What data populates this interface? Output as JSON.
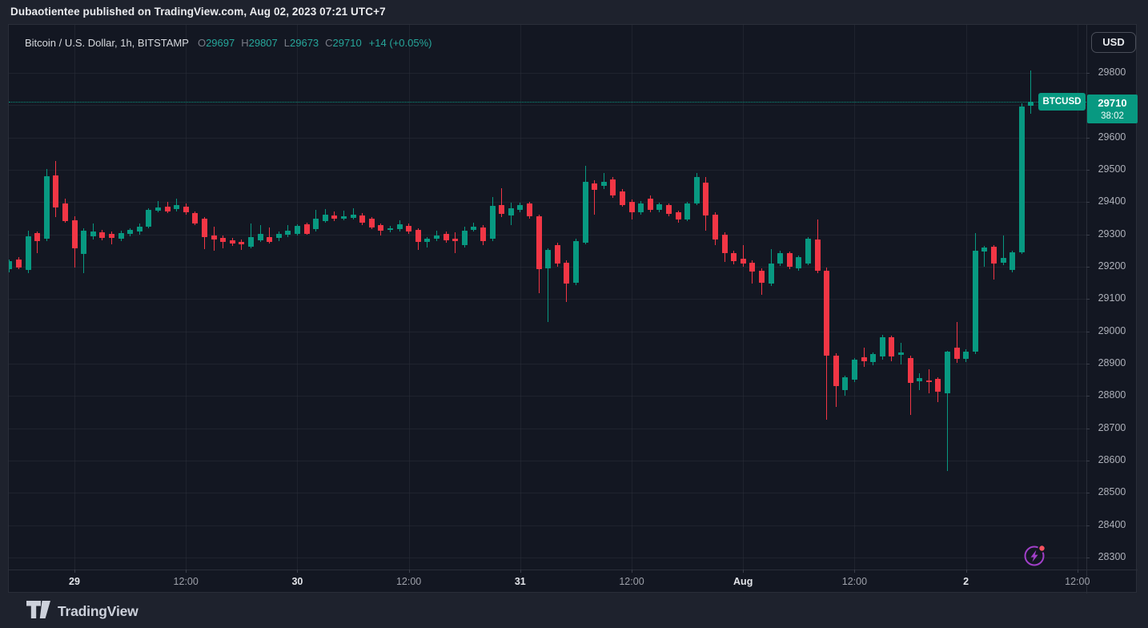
{
  "attribution": {
    "text": "Dubaotientee published on TradingView.com, Aug 02, 2023 07:21 UTC+7"
  },
  "header": {
    "symbol_title": "Bitcoin / U.S. Dollar, 1h, BITSTAMP",
    "ohlc": [
      {
        "label": "O",
        "value": "29697"
      },
      {
        "label": "H",
        "value": "29807"
      },
      {
        "label": "L",
        "value": "29673"
      },
      {
        "label": "C",
        "value": "29710"
      }
    ],
    "change": "+14 (+0.05%)"
  },
  "price_axis": {
    "currency_button": "USD",
    "labels": [
      "29800",
      "29600",
      "29500",
      "29400",
      "29300",
      "29200",
      "29100",
      "29000",
      "28900",
      "28800",
      "28700",
      "28600",
      "28500",
      "28400",
      "28300"
    ],
    "price_badge": {
      "price": "29710",
      "countdown": "38:02"
    }
  },
  "price_line_label": {
    "symbol": "BTCUSD"
  },
  "time_axis": {
    "labels": [
      {
        "text": "29",
        "major": true
      },
      {
        "text": "12:00",
        "major": false
      },
      {
        "text": "30",
        "major": true
      },
      {
        "text": "12:00",
        "major": false
      },
      {
        "text": "31",
        "major": true
      },
      {
        "text": "12:00",
        "major": false
      },
      {
        "text": "Aug",
        "major": true
      },
      {
        "text": "12:00",
        "major": false
      },
      {
        "text": "2",
        "major": true
      },
      {
        "text": "12:00",
        "major": false
      }
    ]
  },
  "footer": {
    "brand": "TradingView"
  },
  "colors": {
    "up": "#089981",
    "down": "#F23645",
    "value_text": "#26A69A",
    "chart_background": "#131722",
    "outer_background": "#1E222D",
    "grid": "#2A2E39",
    "flash_icon": "#A13FC9",
    "flash_dot": "#F7525F"
  },
  "chart_data": {
    "type": "candlestick",
    "title": "Bitcoin / U.S. Dollar",
    "symbol": "BTCUSD",
    "exchange": "BITSTAMP",
    "interval": "1h",
    "legend_position": "top-left",
    "grid": true,
    "last_price": 29710,
    "last_bar": {
      "open": 29697,
      "high": 29807,
      "low": 29673,
      "close": 29710,
      "change": "+14 (+0.05%)",
      "countdown": "38:02"
    },
    "y_axis": {
      "min": 28250,
      "max": 29850,
      "tick_step": 100,
      "visible_ticks": [
        29800,
        29600,
        29500,
        29400,
        29300,
        29200,
        29100,
        29000,
        28900,
        28800,
        28700,
        28600,
        28500,
        28400,
        28300
      ]
    },
    "x_axis": {
      "start": "2023-07-28 17:00",
      "end": "2023-08-02 07:00",
      "major_tick_every_hours": 12
    },
    "columns": [
      "time",
      "open",
      "high",
      "low",
      "close"
    ],
    "candles": [
      [
        "07-28 17:00",
        29192,
        29222,
        29183,
        29217
      ],
      [
        "07-28 18:00",
        29222,
        29230,
        29192,
        29197
      ],
      [
        "07-28 19:00",
        29190,
        29312,
        29180,
        29294
      ],
      [
        "07-28 20:00",
        29304,
        29310,
        29242,
        29279
      ],
      [
        "07-28 21:00",
        29287,
        29502,
        29280,
        29480
      ],
      [
        "07-28 22:00",
        29483,
        29527,
        29354,
        29383
      ],
      [
        "07-28 23:00",
        29395,
        29410,
        29335,
        29341
      ],
      [
        "07-29 00:00",
        29345,
        29356,
        29197,
        29258
      ],
      [
        "07-29 01:00",
        29240,
        29320,
        29180,
        29312
      ],
      [
        "07-29 02:00",
        29295,
        29334,
        29285,
        29308
      ],
      [
        "07-29 03:00",
        29307,
        29315,
        29282,
        29290
      ],
      [
        "07-29 04:00",
        29301,
        29308,
        29268,
        29288
      ],
      [
        "07-29 05:00",
        29287,
        29312,
        29280,
        29305
      ],
      [
        "07-29 06:00",
        29302,
        29320,
        29295,
        29315
      ],
      [
        "07-29 07:00",
        29309,
        29334,
        29300,
        29324
      ],
      [
        "07-29 08:00",
        29324,
        29380,
        29318,
        29376
      ],
      [
        "07-29 09:00",
        29374,
        29404,
        29368,
        29383
      ],
      [
        "07-29 10:00",
        29387,
        29400,
        29365,
        29372
      ],
      [
        "07-29 11:00",
        29377,
        29410,
        29370,
        29391
      ],
      [
        "07-29 12:00",
        29387,
        29395,
        29360,
        29369
      ],
      [
        "07-29 13:00",
        29366,
        29372,
        29328,
        29334
      ],
      [
        "07-29 14:00",
        29349,
        29355,
        29254,
        29292
      ],
      [
        "07-29 15:00",
        29296,
        29324,
        29250,
        29284
      ],
      [
        "07-29 16:00",
        29290,
        29296,
        29258,
        29276
      ],
      [
        "07-29 17:00",
        29283,
        29290,
        29265,
        29272
      ],
      [
        "07-29 18:00",
        29278,
        29284,
        29253,
        29270
      ],
      [
        "07-29 19:00",
        29262,
        29334,
        29256,
        29292
      ],
      [
        "07-29 20:00",
        29282,
        29329,
        29276,
        29302
      ],
      [
        "07-29 21:00",
        29292,
        29322,
        29272,
        29276
      ],
      [
        "07-29 22:00",
        29288,
        29308,
        29280,
        29302
      ],
      [
        "07-29 23:00",
        29298,
        29330,
        29292,
        29312
      ],
      [
        "07-30 00:00",
        29302,
        29332,
        29296,
        29327
      ],
      [
        "07-30 01:00",
        29331,
        29336,
        29298,
        29302
      ],
      [
        "07-30 02:00",
        29317,
        29376,
        29310,
        29349
      ],
      [
        "07-30 03:00",
        29341,
        29378,
        29335,
        29361
      ],
      [
        "07-30 04:00",
        29359,
        29370,
        29342,
        29349
      ],
      [
        "07-30 05:00",
        29349,
        29374,
        29343,
        29357
      ],
      [
        "07-30 06:00",
        29352,
        29380,
        29346,
        29361
      ],
      [
        "07-30 07:00",
        29359,
        29366,
        29330,
        29336
      ],
      [
        "07-30 08:00",
        29349,
        29354,
        29316,
        29322
      ],
      [
        "07-30 09:00",
        29329,
        29334,
        29296,
        29312
      ],
      [
        "07-30 10:00",
        29314,
        29326,
        29306,
        29320
      ],
      [
        "07-30 11:00",
        29317,
        29345,
        29310,
        29331
      ],
      [
        "07-30 12:00",
        29327,
        29334,
        29302,
        29308
      ],
      [
        "07-30 13:00",
        29315,
        29320,
        29252,
        29276
      ],
      [
        "07-30 14:00",
        29276,
        29292,
        29260,
        29287
      ],
      [
        "07-30 15:00",
        29287,
        29312,
        29280,
        29298
      ],
      [
        "07-30 16:00",
        29302,
        29308,
        29275,
        29282
      ],
      [
        "07-30 17:00",
        29287,
        29306,
        29243,
        29280
      ],
      [
        "07-30 18:00",
        29267,
        29323,
        29260,
        29312
      ],
      [
        "07-30 19:00",
        29315,
        29336,
        29308,
        29325
      ],
      [
        "07-30 20:00",
        29322,
        29328,
        29267,
        29279
      ],
      [
        "07-30 21:00",
        29286,
        29416,
        29280,
        29388
      ],
      [
        "07-30 22:00",
        29390,
        29443,
        29355,
        29363
      ],
      [
        "07-30 23:00",
        29358,
        29399,
        29329,
        29380
      ],
      [
        "07-31 00:00",
        29375,
        29398,
        29368,
        29391
      ],
      [
        "07-31 01:00",
        29395,
        29402,
        29348,
        29355
      ],
      [
        "07-31 02:00",
        29356,
        29362,
        29117,
        29192
      ],
      [
        "07-31 03:00",
        29194,
        29258,
        29030,
        29251
      ],
      [
        "07-31 04:00",
        29266,
        29274,
        29200,
        29209
      ],
      [
        "07-31 05:00",
        29212,
        29220,
        29090,
        29148
      ],
      [
        "07-31 06:00",
        29150,
        29288,
        29142,
        29280
      ],
      [
        "07-31 07:00",
        29275,
        29512,
        29270,
        29463
      ],
      [
        "07-31 08:00",
        29458,
        29468,
        29362,
        29437
      ],
      [
        "07-31 09:00",
        29450,
        29490,
        29440,
        29462
      ],
      [
        "07-31 10:00",
        29470,
        29478,
        29412,
        29420
      ],
      [
        "07-31 11:00",
        29432,
        29440,
        29385,
        29391
      ],
      [
        "07-31 12:00",
        29400,
        29408,
        29345,
        29368
      ],
      [
        "07-31 13:00",
        29368,
        29404,
        29362,
        29396
      ],
      [
        "07-31 14:00",
        29410,
        29420,
        29368,
        29375
      ],
      [
        "07-31 15:00",
        29375,
        29398,
        29368,
        29393
      ],
      [
        "07-31 16:00",
        29390,
        29396,
        29355,
        29363
      ],
      [
        "07-31 17:00",
        29368,
        29374,
        29336,
        29347
      ],
      [
        "07-31 18:00",
        29347,
        29400,
        29340,
        29396
      ],
      [
        "07-31 19:00",
        29396,
        29490,
        29392,
        29478
      ],
      [
        "07-31 20:00",
        29461,
        29477,
        29312,
        29358
      ],
      [
        "07-31 21:00",
        29361,
        29368,
        29267,
        29284
      ],
      [
        "07-31 22:00",
        29300,
        29306,
        29215,
        29242
      ],
      [
        "07-31 23:00",
        29242,
        29250,
        29206,
        29217
      ],
      [
        "08-01 00:00",
        29225,
        29267,
        29200,
        29210
      ],
      [
        "08-01 01:00",
        29213,
        29220,
        29147,
        29185
      ],
      [
        "08-01 02:00",
        29188,
        29196,
        29113,
        29150
      ],
      [
        "08-01 03:00",
        29147,
        29254,
        29140,
        29210
      ],
      [
        "08-01 04:00",
        29210,
        29250,
        29202,
        29242
      ],
      [
        "08-01 05:00",
        29242,
        29248,
        29192,
        29200
      ],
      [
        "08-01 06:00",
        29196,
        29235,
        29188,
        29229
      ],
      [
        "08-01 07:00",
        29210,
        29292,
        29204,
        29287
      ],
      [
        "08-01 08:00",
        29284,
        29346,
        29180,
        29188
      ],
      [
        "08-01 09:00",
        29188,
        29197,
        28726,
        28925
      ],
      [
        "08-01 10:00",
        28925,
        28932,
        28765,
        28830
      ],
      [
        "08-01 11:00",
        28817,
        28862,
        28800,
        28858
      ],
      [
        "08-01 12:00",
        28850,
        28918,
        28842,
        28913
      ],
      [
        "08-01 13:00",
        28920,
        28950,
        28890,
        28908
      ],
      [
        "08-01 14:00",
        28904,
        28936,
        28896,
        28929
      ],
      [
        "08-01 15:00",
        28921,
        28990,
        28912,
        28982
      ],
      [
        "08-01 16:00",
        28982,
        28988,
        28908,
        28921
      ],
      [
        "08-01 17:00",
        28928,
        28965,
        28898,
        28935
      ],
      [
        "08-01 18:00",
        28918,
        28924,
        28741,
        28841
      ],
      [
        "08-01 19:00",
        28845,
        28870,
        28818,
        28855
      ],
      [
        "08-01 20:00",
        28848,
        28883,
        28808,
        28842
      ],
      [
        "08-01 21:00",
        28852,
        28858,
        28782,
        28812
      ],
      [
        "08-01 22:00",
        28807,
        28940,
        28567,
        28938
      ],
      [
        "08-01 23:00",
        28950,
        29028,
        28902,
        28915
      ],
      [
        "08-02 00:00",
        28915,
        28945,
        28905,
        28938
      ],
      [
        "08-02 01:00",
        28938,
        29304,
        28930,
        29250
      ],
      [
        "08-02 02:00",
        29247,
        29265,
        29200,
        29259
      ],
      [
        "08-02 03:00",
        29262,
        29268,
        29160,
        29210
      ],
      [
        "08-02 04:00",
        29212,
        29297,
        29205,
        29227
      ],
      [
        "08-02 05:00",
        29190,
        29250,
        29182,
        29245
      ],
      [
        "08-02 06:00",
        29245,
        29705,
        29240,
        29697
      ],
      [
        "08-02 07:00",
        29697,
        29807,
        29673,
        29710
      ]
    ]
  }
}
